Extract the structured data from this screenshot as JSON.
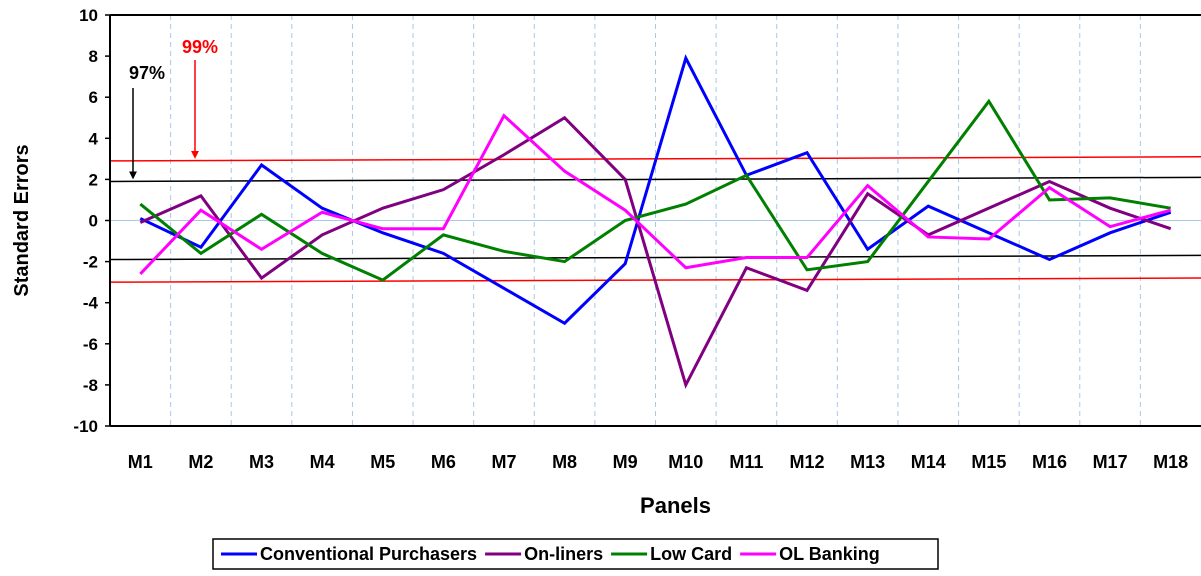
{
  "chart_data": {
    "type": "line",
    "title": "",
    "xlabel": "Panels",
    "ylabel": "Standard Errors",
    "ylim": [
      -10,
      10
    ],
    "yticks": [
      10,
      8,
      6,
      4,
      2,
      0,
      -2,
      -4,
      -6,
      -8,
      -10
    ],
    "categories": [
      "M1",
      "M2",
      "M3",
      "M4",
      "M5",
      "M6",
      "M7",
      "M8",
      "M9",
      "M10",
      "M11",
      "M12",
      "M13",
      "M14",
      "M15",
      "M16",
      "M17",
      "M18"
    ],
    "grid": "vertical dashed",
    "legend_position": "bottom",
    "series": [
      {
        "name": "Conventional Purchasers",
        "color": "#0000ff",
        "values": [
          0.1,
          -1.3,
          2.7,
          0.6,
          -0.6,
          -1.6,
          -3.3,
          -5.0,
          -2.1,
          7.9,
          2.2,
          3.3,
          -1.4,
          0.7,
          -0.6,
          -1.9,
          -0.6,
          0.4
        ]
      },
      {
        "name": "On-liners",
        "color": "#800080",
        "values": [
          -0.1,
          1.2,
          -2.8,
          -0.7,
          0.6,
          1.5,
          3.2,
          5.0,
          2.0,
          -8.0,
          -2.3,
          -3.4,
          1.3,
          -0.7,
          0.6,
          1.9,
          0.6,
          -0.4
        ]
      },
      {
        "name": "Low Card",
        "color": "#008000",
        "values": [
          0.8,
          -1.6,
          0.3,
          -1.6,
          -2.9,
          -0.7,
          -1.5,
          -2.0,
          0.0,
          0.8,
          2.2,
          -2.4,
          -2.0,
          1.9,
          5.8,
          1.0,
          1.1,
          0.6
        ]
      },
      {
        "name": "OL Banking",
        "color": "#ff00ff",
        "values": [
          -2.6,
          0.5,
          -1.4,
          0.4,
          -0.4,
          -0.4,
          5.1,
          2.4,
          0.5,
          -2.3,
          -1.8,
          -1.8,
          1.7,
          -0.8,
          -0.9,
          1.6,
          -0.3,
          0.5
        ]
      }
    ],
    "reference_lines": [
      {
        "color": "#ff0000",
        "y_start": 2.9,
        "y_end": 3.1
      },
      {
        "color": "#000000",
        "y_start": 1.9,
        "y_end": 2.1
      },
      {
        "color": "#000000",
        "y_start": -1.9,
        "y_end": -1.7
      },
      {
        "color": "#ff0000",
        "y_start": -3.0,
        "y_end": -2.8
      }
    ],
    "annotations": [
      {
        "text": "99%",
        "color": "#ff0000",
        "points_to_y": 3.0
      },
      {
        "text": "97%",
        "color": "#000000",
        "points_to_y": 2.0
      }
    ]
  }
}
